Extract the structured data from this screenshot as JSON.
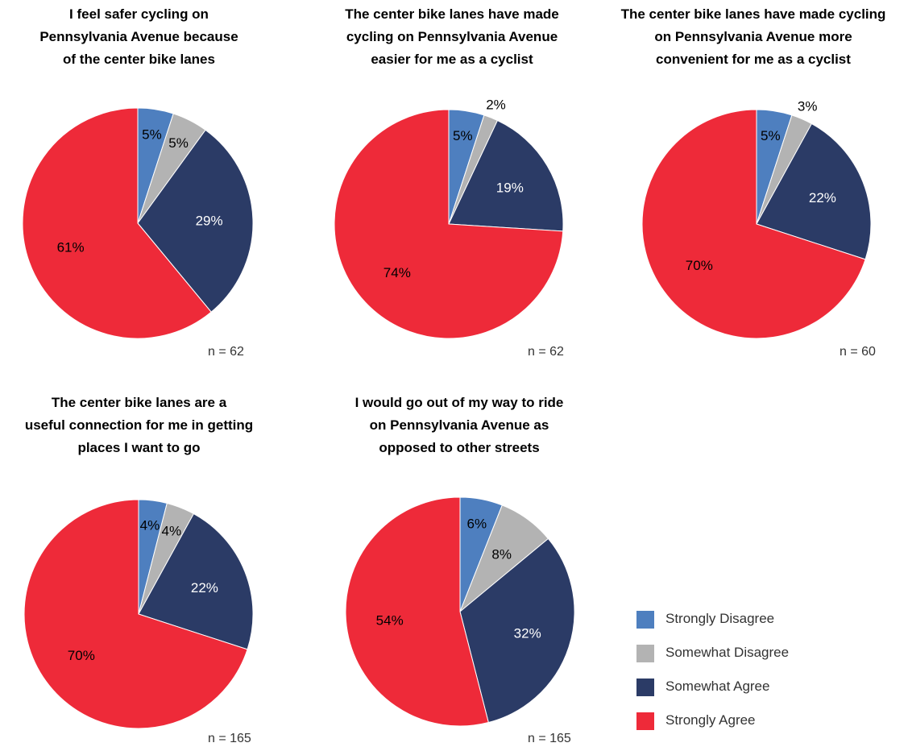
{
  "colors": {
    "Strongly Disagree": "#4e7fbf",
    "Somewhat Disagree": "#b3b3b3",
    "Somewhat Agree": "#2b3b66",
    "Strongly Agree": "#ee2a39"
  },
  "legend": [
    {
      "label": "Strongly Disagree"
    },
    {
      "label": "Somewhat Disagree"
    },
    {
      "label": "Somewhat Agree"
    },
    {
      "label": "Strongly Agree"
    }
  ],
  "chart_data": [
    {
      "type": "pie",
      "title": [
        "I feel safer cycling on",
        "Pennsylvania Avenue because",
        "of the center bike lanes"
      ],
      "n_label": "n = 62",
      "categories": [
        "Strongly Disagree",
        "Somewhat Disagree",
        "Somewhat Agree",
        "Strongly Agree"
      ],
      "values": [
        5,
        5,
        29,
        61
      ],
      "labels": [
        "5%",
        "5%",
        "29%",
        "61%"
      ]
    },
    {
      "type": "pie",
      "title": [
        "The center bike lanes have made",
        "cycling on Pennsylvania Avenue",
        "easier for me as a cyclist"
      ],
      "n_label": "n = 62",
      "categories": [
        "Strongly Disagree",
        "Somewhat Disagree",
        "Somewhat Agree",
        "Strongly Agree"
      ],
      "values": [
        5,
        2,
        19,
        74
      ],
      "labels": [
        "5%",
        "2%",
        "19%",
        "74%"
      ]
    },
    {
      "type": "pie",
      "title": [
        "The center bike lanes have made cycling",
        "on Pennsylvania Avenue more",
        "convenient for me as a cyclist"
      ],
      "n_label": "n = 60",
      "categories": [
        "Strongly Disagree",
        "Somewhat Disagree",
        "Somewhat Agree",
        "Strongly Agree"
      ],
      "values": [
        5,
        3,
        22,
        70
      ],
      "labels": [
        "5%",
        "3%",
        "22%",
        "70%"
      ]
    },
    {
      "type": "pie",
      "title": [
        "The center bike lanes are a",
        "useful connection for me in getting",
        "places I want to go"
      ],
      "n_label": "n = 165",
      "categories": [
        "Strongly Disagree",
        "Somewhat Disagree",
        "Somewhat Agree",
        "Strongly Agree"
      ],
      "values": [
        4,
        4,
        22,
        70
      ],
      "labels": [
        "4%",
        "4%",
        "22%",
        "70%"
      ]
    },
    {
      "type": "pie",
      "title": [
        "I would go out of my way to ride",
        "on Pennsylvania Avenue as",
        "opposed to other streets"
      ],
      "n_label": "n = 165",
      "categories": [
        "Strongly Disagree",
        "Somewhat Disagree",
        "Somewhat Agree",
        "Strongly Agree"
      ],
      "values": [
        6,
        8,
        32,
        54
      ],
      "labels": [
        "6%",
        "8%",
        "32%",
        "54%"
      ]
    }
  ]
}
